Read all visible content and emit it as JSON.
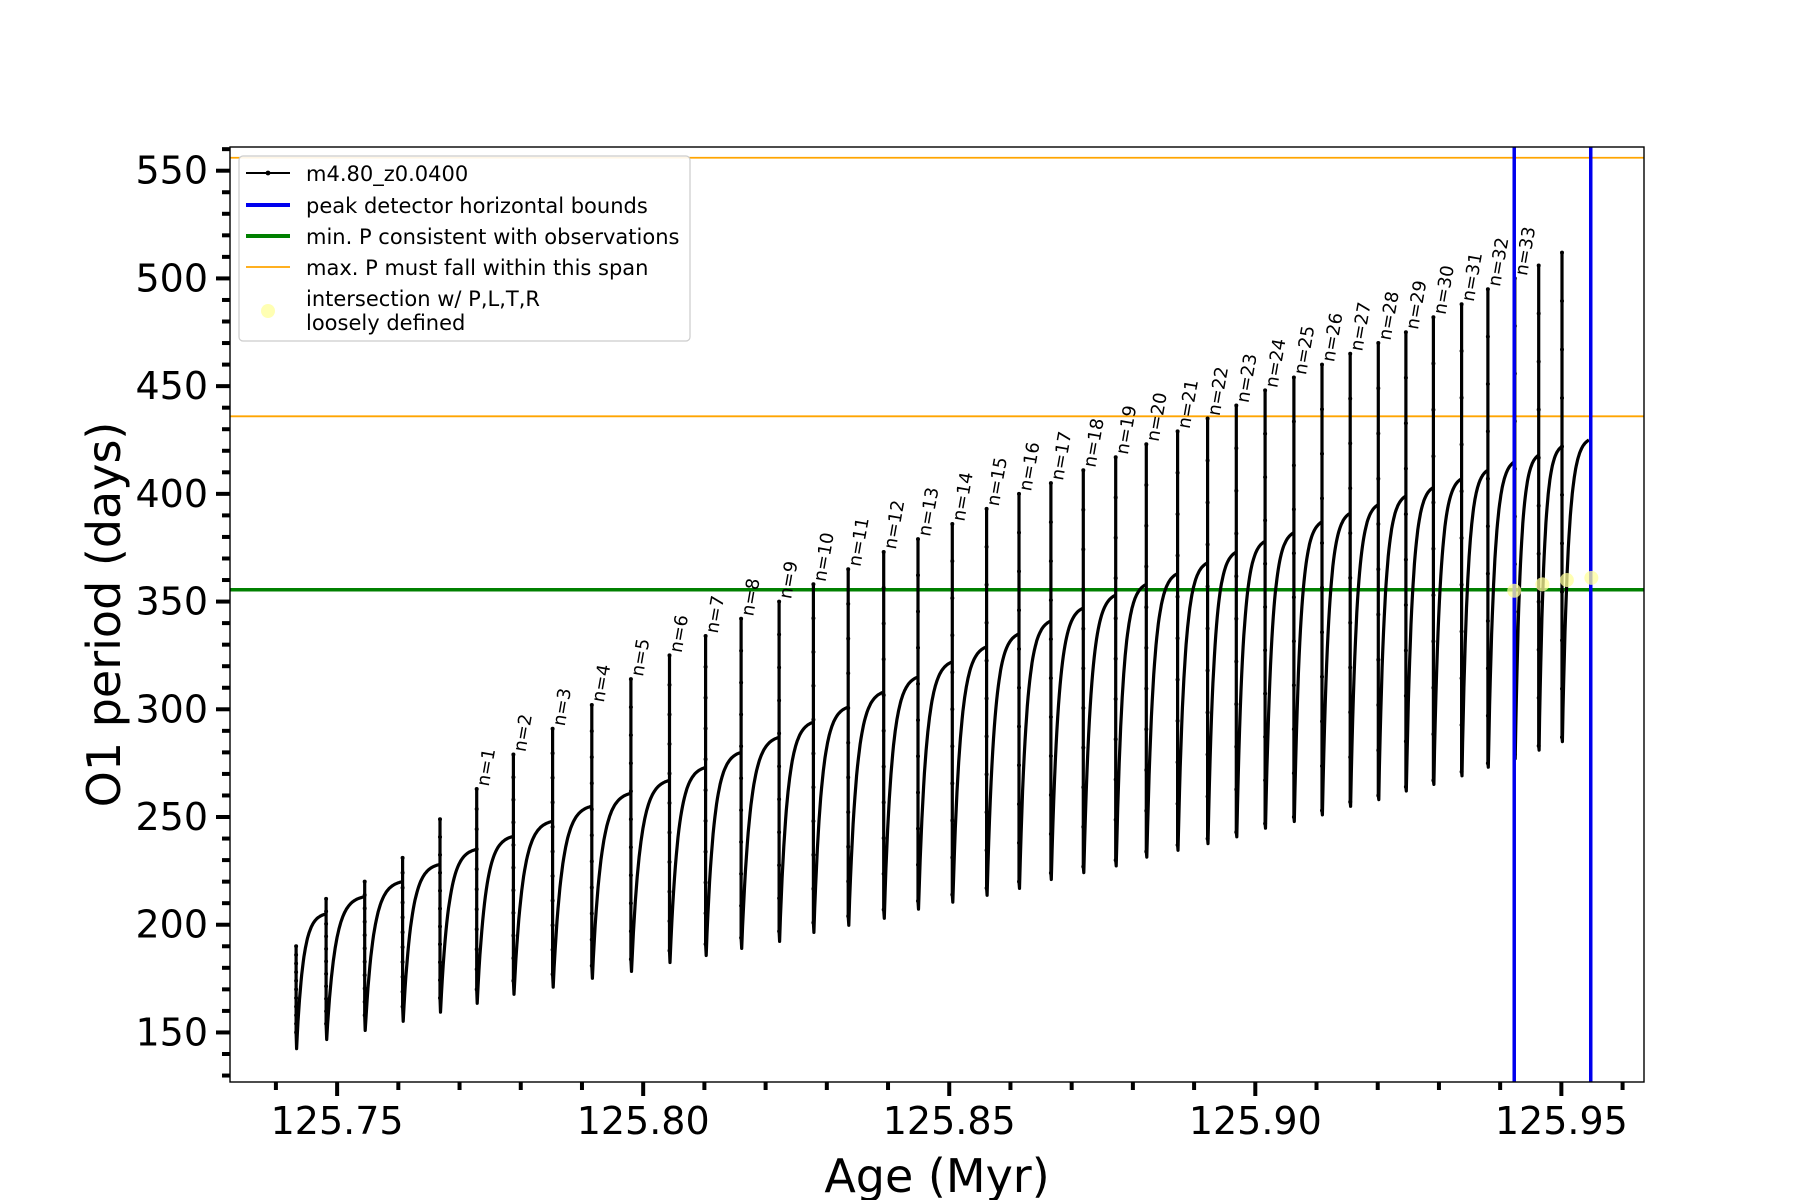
{
  "chart_data": {
    "type": "line",
    "xlabel": "Age (Myr)",
    "ylabel": "O1 period (days)",
    "xlim": [
      125.7325,
      125.9635
    ],
    "ylim": [
      127,
      561
    ],
    "xticks": [
      "125.75",
      "125.80",
      "125.85",
      "125.90",
      "125.95"
    ],
    "xtick_values": [
      125.75,
      125.8,
      125.85,
      125.9,
      125.95
    ],
    "yticks": [
      "150",
      "200",
      "250",
      "300",
      "350",
      "400",
      "450",
      "500",
      "550"
    ],
    "ytick_values": [
      150,
      200,
      250,
      300,
      350,
      400,
      450,
      500,
      550
    ],
    "legend_position": "upper-left",
    "series": [
      {
        "name": "m4.80_z0.0400",
        "color": "#000000",
        "style": "line-with-dot-markers",
        "cycles": [
          {
            "x_start": 125.7433,
            "x_end": 125.7482,
            "trough": 138,
            "crest": 205,
            "spike": 190
          },
          {
            "x_start": 125.7482,
            "x_end": 125.7545,
            "trough": 142,
            "crest": 213,
            "spike": 212
          },
          {
            "x_start": 125.7545,
            "x_end": 125.7607,
            "trough": 146,
            "crest": 220,
            "spike": 220
          },
          {
            "x_start": 125.7607,
            "x_end": 125.7668,
            "trough": 150,
            "crest": 228,
            "spike": 231
          },
          {
            "x_start": 125.7668,
            "x_end": 125.7728,
            "trough": 154,
            "crest": 235,
            "spike": 249
          },
          {
            "x_start": 125.7728,
            "x_end": 125.7788,
            "trough": 158,
            "crest": 241,
            "spike": 263
          },
          {
            "x_start": 125.7788,
            "x_end": 125.7852,
            "trough": 162,
            "crest": 248,
            "spike": 279
          },
          {
            "x_start": 125.7852,
            "x_end": 125.7916,
            "trough": 165,
            "crest": 255,
            "spike": 291
          },
          {
            "x_start": 125.7916,
            "x_end": 125.798,
            "trough": 169,
            "crest": 261,
            "spike": 302
          },
          {
            "x_start": 125.798,
            "x_end": 125.8043,
            "trough": 172,
            "crest": 267,
            "spike": 314
          },
          {
            "x_start": 125.8043,
            "x_end": 125.8102,
            "trough": 176,
            "crest": 273,
            "spike": 325
          },
          {
            "x_start": 125.8102,
            "x_end": 125.816,
            "trough": 179,
            "crest": 280,
            "spike": 334
          },
          {
            "x_start": 125.816,
            "x_end": 125.8222,
            "trough": 182,
            "crest": 287,
            "spike": 342
          },
          {
            "x_start": 125.8222,
            "x_end": 125.8278,
            "trough": 185,
            "crest": 294,
            "spike": 350
          },
          {
            "x_start": 125.8278,
            "x_end": 125.8335,
            "trough": 189,
            "crest": 301,
            "spike": 358
          },
          {
            "x_start": 125.8335,
            "x_end": 125.8393,
            "trough": 192,
            "crest": 308,
            "spike": 365
          },
          {
            "x_start": 125.8393,
            "x_end": 125.8449,
            "trough": 195,
            "crest": 315,
            "spike": 373
          },
          {
            "x_start": 125.8449,
            "x_end": 125.8505,
            "trough": 199,
            "crest": 322,
            "spike": 379
          },
          {
            "x_start": 125.8505,
            "x_end": 125.8561,
            "trough": 202,
            "crest": 329,
            "spike": 386
          },
          {
            "x_start": 125.8561,
            "x_end": 125.8614,
            "trough": 205,
            "crest": 335,
            "spike": 393
          },
          {
            "x_start": 125.8614,
            "x_end": 125.8666,
            "trough": 208,
            "crest": 341,
            "spike": 400
          },
          {
            "x_start": 125.8666,
            "x_end": 125.8719,
            "trough": 212,
            "crest": 347,
            "spike": 405
          },
          {
            "x_start": 125.8719,
            "x_end": 125.8772,
            "trough": 215,
            "crest": 353,
            "spike": 411
          },
          {
            "x_start": 125.8772,
            "x_end": 125.8822,
            "trough": 218,
            "crest": 358,
            "spike": 417
          },
          {
            "x_start": 125.8822,
            "x_end": 125.8873,
            "trough": 222,
            "crest": 363,
            "spike": 423
          },
          {
            "x_start": 125.8873,
            "x_end": 125.8922,
            "trough": 225,
            "crest": 368,
            "spike": 429
          },
          {
            "x_start": 125.8922,
            "x_end": 125.8969,
            "trough": 228,
            "crest": 373,
            "spike": 435
          },
          {
            "x_start": 125.8969,
            "x_end": 125.9016,
            "trough": 231,
            "crest": 378,
            "spike": 441
          },
          {
            "x_start": 125.9016,
            "x_end": 125.9063,
            "trough": 235,
            "crest": 382,
            "spike": 448
          },
          {
            "x_start": 125.9063,
            "x_end": 125.9109,
            "trough": 238,
            "crest": 387,
            "spike": 454
          },
          {
            "x_start": 125.9109,
            "x_end": 125.9155,
            "trough": 241,
            "crest": 391,
            "spike": 460
          },
          {
            "x_start": 125.9155,
            "x_end": 125.9201,
            "trough": 245,
            "crest": 395,
            "spike": 465
          },
          {
            "x_start": 125.9201,
            "x_end": 125.9246,
            "trough": 248,
            "crest": 399,
            "spike": 470
          },
          {
            "x_start": 125.9246,
            "x_end": 125.9291,
            "trough": 252,
            "crest": 403,
            "spike": 475
          },
          {
            "x_start": 125.9291,
            "x_end": 125.9337,
            "trough": 255,
            "crest": 407,
            "spike": 482
          },
          {
            "x_start": 125.9337,
            "x_end": 125.938,
            "trough": 259,
            "crest": 411,
            "spike": 488
          },
          {
            "x_start": 125.938,
            "x_end": 125.9424,
            "trough": 263,
            "crest": 415,
            "spike": 495
          },
          {
            "x_start": 125.9424,
            "x_end": 125.9463,
            "trough": 267,
            "crest": 418,
            "spike": 500
          },
          {
            "x_start": 125.9463,
            "x_end": 125.9501,
            "trough": 271,
            "crest": 422,
            "spike": 506
          },
          {
            "x_start": 125.9501,
            "x_end": 125.9545,
            "trough": 275,
            "crest": 425,
            "spike": 512
          }
        ]
      },
      {
        "name": "peak detector horizontal bounds",
        "color": "#0000ee",
        "x": [
          125.9423,
          125.9548
        ]
      },
      {
        "name": "min. P consistent with observations",
        "color": "#008000",
        "y": 355.5
      },
      {
        "name": "max. P must fall within this span",
        "color": "#ffa500",
        "y": [
          436,
          556
        ]
      },
      {
        "name": "intersection w/ P,L,T,R\nloosely defined",
        "color": "#ffff99",
        "points": [
          {
            "x": 125.9423,
            "y": 355
          },
          {
            "x": 125.9469,
            "y": 358
          },
          {
            "x": 125.9509,
            "y": 360
          },
          {
            "x": 125.9549,
            "y": 361
          }
        ]
      }
    ],
    "peak_labels": [
      "n=1",
      "n=2",
      "n=3",
      "n=4",
      "n=5",
      "n=6",
      "n=7",
      "n=8",
      "n=9",
      "n=10",
      "n=11",
      "n=12",
      "n=13",
      "n=14",
      "n=15",
      "n=16",
      "n=17",
      "n=18",
      "n=19",
      "n=20",
      "n=21",
      "n=22",
      "n=23",
      "n=24",
      "n=25",
      "n=26",
      "n=27",
      "n=28",
      "n=29",
      "n=30",
      "n=31",
      "n=32",
      "n=33"
    ],
    "peak_label_cycle_start": 5
  }
}
